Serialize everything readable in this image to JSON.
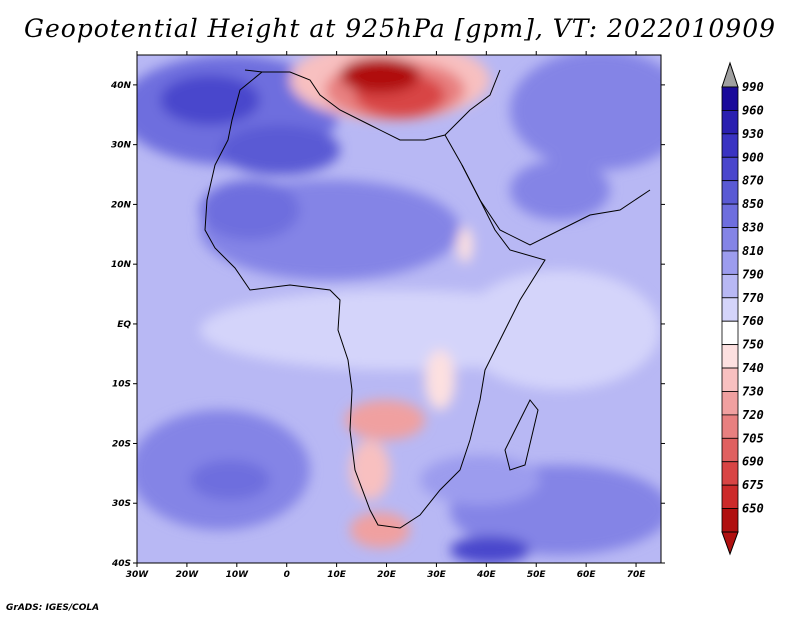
{
  "title": "Geopotential Height at 925hPa [gpm], VT: 2022010909",
  "credit": "GrADS: IGES/COLA",
  "map": {
    "lon_range": [
      -30,
      75
    ],
    "lat_range": [
      -40,
      45
    ],
    "lon_ticks": [
      "30W",
      "20W",
      "10W",
      "0",
      "10E",
      "20E",
      "30E",
      "40E",
      "50E",
      "60E",
      "70E"
    ],
    "lat_ticks": [
      "40N",
      "30N",
      "20N",
      "10N",
      "EQ",
      "10S",
      "20S",
      "30S",
      "40S"
    ]
  },
  "colorbar": {
    "levels": [
      "990",
      "960",
      "930",
      "900",
      "870",
      "850",
      "830",
      "810",
      "790",
      "770",
      "760",
      "750",
      "740",
      "730",
      "720",
      "705",
      "690",
      "675",
      "650"
    ],
    "colors": [
      "#1a0a9a",
      "#2a1fb0",
      "#3a33c2",
      "#4a46cc",
      "#5a5ad4",
      "#6e6ede",
      "#8484e6",
      "#9c9cee",
      "#b8b8f4",
      "#d4d4fa",
      "#ffffff",
      "#fde0e0",
      "#f8c0c0",
      "#f0a0a0",
      "#e88080",
      "#e06060",
      "#d84444",
      "#cc2a2a",
      "#b01010"
    ],
    "top_arrow_color": "#a0a0a0",
    "bottom_arrow_color": "#b01010"
  }
}
